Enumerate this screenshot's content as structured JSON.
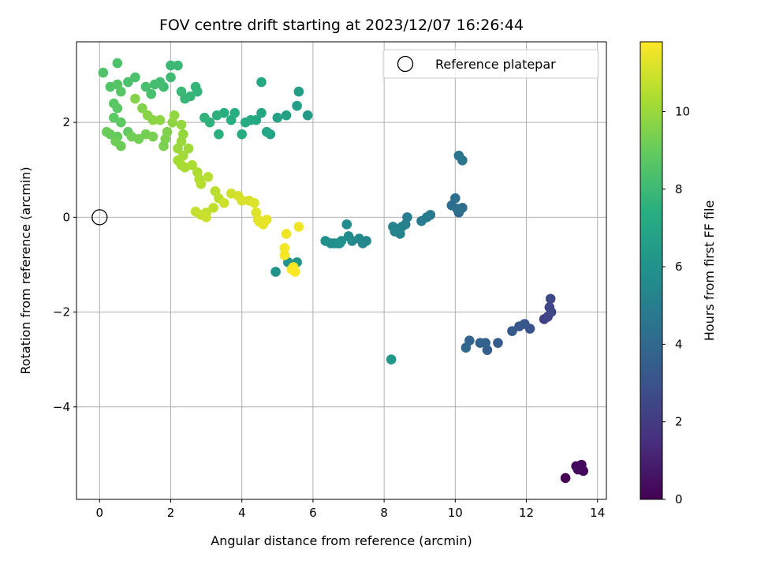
{
  "chart_data": {
    "type": "scatter",
    "title": "FOV centre drift starting at 2023/12/07 16:26:44",
    "xlabel": "Angular distance from reference (arcmin)",
    "ylabel": "Rotation from reference (arcmin)",
    "xlim": [
      -0.65,
      14.25
    ],
    "ylim": [
      -5.95,
      3.7
    ],
    "xticks": [
      0,
      2,
      4,
      6,
      8,
      10,
      12,
      14
    ],
    "yticks": [
      -4,
      -2,
      0,
      2
    ],
    "xtick_labels": [
      "0",
      "2",
      "4",
      "6",
      "8",
      "10",
      "12",
      "14"
    ],
    "ytick_labels": [
      "−4",
      "−2",
      "0",
      "2"
    ],
    "grid": true,
    "legend": {
      "position": "top-right",
      "entries": [
        "Reference platepar"
      ]
    },
    "reference_point": {
      "x": 0,
      "y": 0
    },
    "colorbar": {
      "label": "Hours from first FF file",
      "range": [
        0,
        11.8
      ],
      "ticks": [
        0,
        2,
        4,
        6,
        8,
        10
      ],
      "colormap": "viridis"
    },
    "points": [
      [
        13.1,
        -5.5,
        0.0
      ],
      [
        13.4,
        -5.25,
        0.1
      ],
      [
        13.5,
        -5.3,
        0.15
      ],
      [
        13.6,
        -5.35,
        0.2
      ],
      [
        13.55,
        -5.22,
        0.25
      ],
      [
        13.45,
        -5.32,
        0.3
      ],
      [
        12.5,
        -2.15,
        2.2
      ],
      [
        12.6,
        -2.1,
        2.3
      ],
      [
        12.65,
        -1.9,
        2.4
      ],
      [
        12.7,
        -2.0,
        2.5
      ],
      [
        12.68,
        -1.72,
        2.6
      ],
      [
        12.1,
        -2.35,
        3.0
      ],
      [
        11.95,
        -2.25,
        3.1
      ],
      [
        11.8,
        -2.3,
        3.2
      ],
      [
        11.6,
        -2.4,
        3.3
      ],
      [
        11.2,
        -2.65,
        3.4
      ],
      [
        10.9,
        -2.8,
        3.5
      ],
      [
        10.85,
        -2.65,
        3.6
      ],
      [
        10.7,
        -2.65,
        3.7
      ],
      [
        10.4,
        -2.6,
        3.8
      ],
      [
        10.3,
        -2.75,
        3.9
      ],
      [
        10.1,
        0.1,
        4.0
      ],
      [
        10.2,
        0.2,
        4.1
      ],
      [
        9.9,
        0.25,
        4.2
      ],
      [
        10.0,
        0.4,
        4.3
      ],
      [
        10.05,
        0.18,
        4.4
      ],
      [
        10.1,
        1.3,
        4.5
      ],
      [
        10.2,
        1.2,
        4.6
      ],
      [
        9.3,
        0.05,
        4.7
      ],
      [
        9.2,
        0.0,
        4.8
      ],
      [
        9.05,
        -0.08,
        4.9
      ],
      [
        8.65,
        0.0,
        5.0
      ],
      [
        8.6,
        -0.15,
        5.1
      ],
      [
        8.5,
        -0.2,
        5.15
      ],
      [
        8.45,
        -0.35,
        5.2
      ],
      [
        8.3,
        -0.3,
        5.25
      ],
      [
        8.25,
        -0.2,
        5.3
      ],
      [
        8.35,
        -0.25,
        5.35
      ],
      [
        7.5,
        -0.5,
        5.4
      ],
      [
        7.4,
        -0.55,
        5.45
      ],
      [
        7.3,
        -0.45,
        5.5
      ],
      [
        7.1,
        -0.5,
        5.55
      ],
      [
        7.0,
        -0.4,
        5.6
      ],
      [
        6.95,
        -0.15,
        5.65
      ],
      [
        6.8,
        -0.5,
        5.7
      ],
      [
        6.7,
        -0.55,
        5.75
      ],
      [
        6.6,
        -0.55,
        5.8
      ],
      [
        6.5,
        -0.55,
        5.85
      ],
      [
        6.35,
        -0.5,
        5.9
      ],
      [
        6.75,
        -0.55,
        5.95
      ],
      [
        4.95,
        -1.15,
        6.0
      ],
      [
        5.3,
        -0.95,
        6.05
      ],
      [
        5.55,
        -0.95,
        6.1
      ],
      [
        8.2,
        -3.0,
        6.2
      ],
      [
        5.85,
        2.15,
        6.4
      ],
      [
        5.6,
        2.65,
        6.5
      ],
      [
        5.55,
        2.35,
        6.6
      ],
      [
        5.25,
        2.15,
        6.7
      ],
      [
        5.0,
        2.1,
        6.8
      ],
      [
        4.8,
        1.75,
        6.9
      ],
      [
        4.7,
        1.8,
        7.0
      ],
      [
        4.55,
        2.2,
        7.05
      ],
      [
        4.55,
        2.85,
        7.1
      ],
      [
        4.4,
        2.05,
        7.15
      ],
      [
        4.25,
        2.05,
        7.2
      ],
      [
        4.1,
        2.0,
        7.25
      ],
      [
        4.0,
        1.75,
        7.3
      ],
      [
        3.8,
        2.2,
        7.35
      ],
      [
        3.7,
        2.05,
        7.4
      ],
      [
        3.5,
        2.2,
        7.45
      ],
      [
        3.35,
        1.75,
        7.5
      ],
      [
        3.3,
        2.15,
        7.55
      ],
      [
        3.1,
        2.0,
        7.6
      ],
      [
        2.95,
        2.1,
        7.65
      ],
      [
        2.75,
        2.65,
        7.7
      ],
      [
        2.7,
        2.75,
        7.75
      ],
      [
        2.55,
        2.55,
        7.8
      ],
      [
        2.4,
        2.5,
        7.85
      ],
      [
        2.3,
        2.65,
        7.9
      ],
      [
        2.2,
        3.2,
        7.95
      ],
      [
        2.0,
        3.2,
        8.0
      ],
      [
        2.0,
        2.95,
        8.05
      ],
      [
        1.8,
        2.75,
        8.1
      ],
      [
        1.7,
        2.85,
        8.15
      ],
      [
        1.55,
        2.8,
        8.2
      ],
      [
        1.45,
        2.6,
        8.25
      ],
      [
        1.3,
        2.75,
        8.3
      ],
      [
        1.0,
        2.95,
        8.35
      ],
      [
        0.8,
        2.85,
        8.4
      ],
      [
        0.5,
        3.25,
        8.45
      ],
      [
        0.1,
        3.05,
        8.5
      ],
      [
        0.3,
        2.75,
        8.55
      ],
      [
        0.5,
        2.8,
        8.6
      ],
      [
        0.6,
        2.65,
        8.65
      ],
      [
        0.4,
        2.4,
        8.7
      ],
      [
        0.5,
        2.3,
        8.75
      ],
      [
        0.4,
        2.1,
        8.8
      ],
      [
        0.6,
        2.0,
        8.85
      ],
      [
        0.8,
        1.8,
        8.9
      ],
      [
        0.5,
        1.7,
        8.95
      ],
      [
        0.3,
        1.75,
        9.0
      ],
      [
        0.2,
        1.8,
        9.05
      ],
      [
        0.6,
        1.5,
        9.1
      ],
      [
        0.45,
        1.6,
        9.15
      ],
      [
        0.9,
        1.7,
        9.2
      ],
      [
        1.1,
        1.65,
        9.25
      ],
      [
        1.3,
        1.75,
        9.3
      ],
      [
        1.5,
        1.7,
        9.35
      ],
      [
        1.8,
        1.5,
        9.4
      ],
      [
        1.85,
        1.65,
        9.45
      ],
      [
        1.9,
        1.8,
        9.5
      ],
      [
        1.2,
        2.3,
        9.55
      ],
      [
        1.0,
        2.5,
        9.6
      ],
      [
        1.35,
        2.15,
        9.65
      ],
      [
        1.5,
        2.05,
        9.7
      ],
      [
        1.7,
        2.05,
        9.75
      ],
      [
        2.05,
        2.0,
        9.8
      ],
      [
        2.1,
        2.15,
        9.85
      ],
      [
        2.3,
        1.95,
        9.9
      ],
      [
        2.35,
        1.75,
        9.95
      ],
      [
        2.3,
        1.6,
        10.0
      ],
      [
        2.2,
        1.45,
        10.05
      ],
      [
        2.5,
        1.45,
        10.1
      ],
      [
        2.35,
        1.3,
        10.15
      ],
      [
        2.2,
        1.2,
        10.2
      ],
      [
        2.3,
        1.1,
        10.25
      ],
      [
        2.4,
        1.05,
        10.3
      ],
      [
        2.6,
        1.1,
        10.35
      ],
      [
        2.75,
        0.95,
        10.4
      ],
      [
        2.8,
        0.8,
        10.45
      ],
      [
        2.85,
        0.7,
        10.5
      ],
      [
        3.05,
        0.85,
        10.55
      ],
      [
        3.25,
        0.55,
        10.6
      ],
      [
        3.35,
        0.4,
        10.65
      ],
      [
        3.2,
        0.2,
        10.7
      ],
      [
        3.0,
        0.1,
        10.75
      ],
      [
        2.7,
        0.12,
        10.8
      ],
      [
        2.85,
        0.05,
        10.85
      ],
      [
        3.0,
        0.0,
        10.9
      ],
      [
        3.5,
        0.3,
        10.95
      ],
      [
        3.7,
        0.5,
        11.0
      ],
      [
        3.9,
        0.45,
        11.05
      ],
      [
        4.0,
        0.35,
        11.1
      ],
      [
        4.2,
        0.35,
        11.15
      ],
      [
        4.35,
        0.3,
        11.2
      ],
      [
        4.4,
        0.1,
        11.25
      ],
      [
        4.45,
        -0.05,
        11.3
      ],
      [
        4.5,
        -0.1,
        11.35
      ],
      [
        4.6,
        -0.15,
        11.4
      ],
      [
        4.7,
        -0.05,
        11.45
      ],
      [
        5.6,
        -0.2,
        11.5
      ],
      [
        5.25,
        -0.35,
        11.55
      ],
      [
        5.2,
        -0.65,
        11.6
      ],
      [
        5.2,
        -0.8,
        11.65
      ],
      [
        5.45,
        -1.05,
        11.7
      ],
      [
        5.5,
        -1.15,
        11.75
      ],
      [
        5.4,
        -1.1,
        11.78
      ]
    ]
  }
}
